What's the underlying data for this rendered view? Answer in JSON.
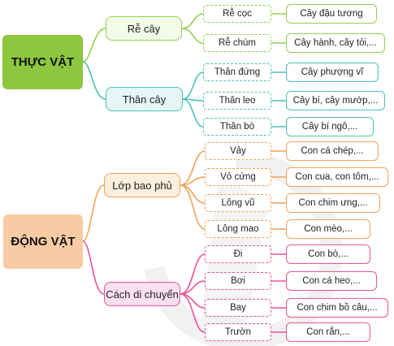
{
  "colors": {
    "plant_root": "#8dc63f",
    "animal_root": "#f8cba4",
    "green": "#92d050",
    "teal": "#4bc1b8",
    "orange": "#f0a35a",
    "pink": "#e8539a"
  },
  "plant": {
    "root": "THỰC VẬT",
    "roots": {
      "label": "Rễ cây",
      "items": [
        {
          "label": "Rễ cọc",
          "example": "Cây đậu tương"
        },
        {
          "label": "Rễ chùm",
          "example": "Cây hành, cây tỏi,..."
        }
      ]
    },
    "stems": {
      "label": "Thân cây",
      "items": [
        {
          "label": "Thân đứng",
          "example": "Cây phượng vĩ"
        },
        {
          "label": "Thân leo",
          "example": "Cây bí, cây mướp,..."
        },
        {
          "label": "Thân bò",
          "example": "Cây bí ngô,..."
        }
      ]
    }
  },
  "animal": {
    "root": "ĐỘNG VẬT",
    "covering": {
      "label": "Lớp bao phủ",
      "items": [
        {
          "label": "Vảy",
          "example": "Con cá chép,..."
        },
        {
          "label": "Vỏ cứng",
          "example": "Con cua, con tôm,..."
        },
        {
          "label": "Lông vũ",
          "example": "Con chim ưng,..."
        },
        {
          "label": "Lông mao",
          "example": "Con mèo,..."
        }
      ]
    },
    "movement": {
      "label": "Cách di chuyển",
      "items": [
        {
          "label": "Đi",
          "example": "Con bò,..."
        },
        {
          "label": "Bơi",
          "example": "Con cá heo,..."
        },
        {
          "label": "Bay",
          "example": "Con chim bồ câu,..."
        },
        {
          "label": "Trườn",
          "example": "Con rắn,..."
        }
      ]
    }
  }
}
